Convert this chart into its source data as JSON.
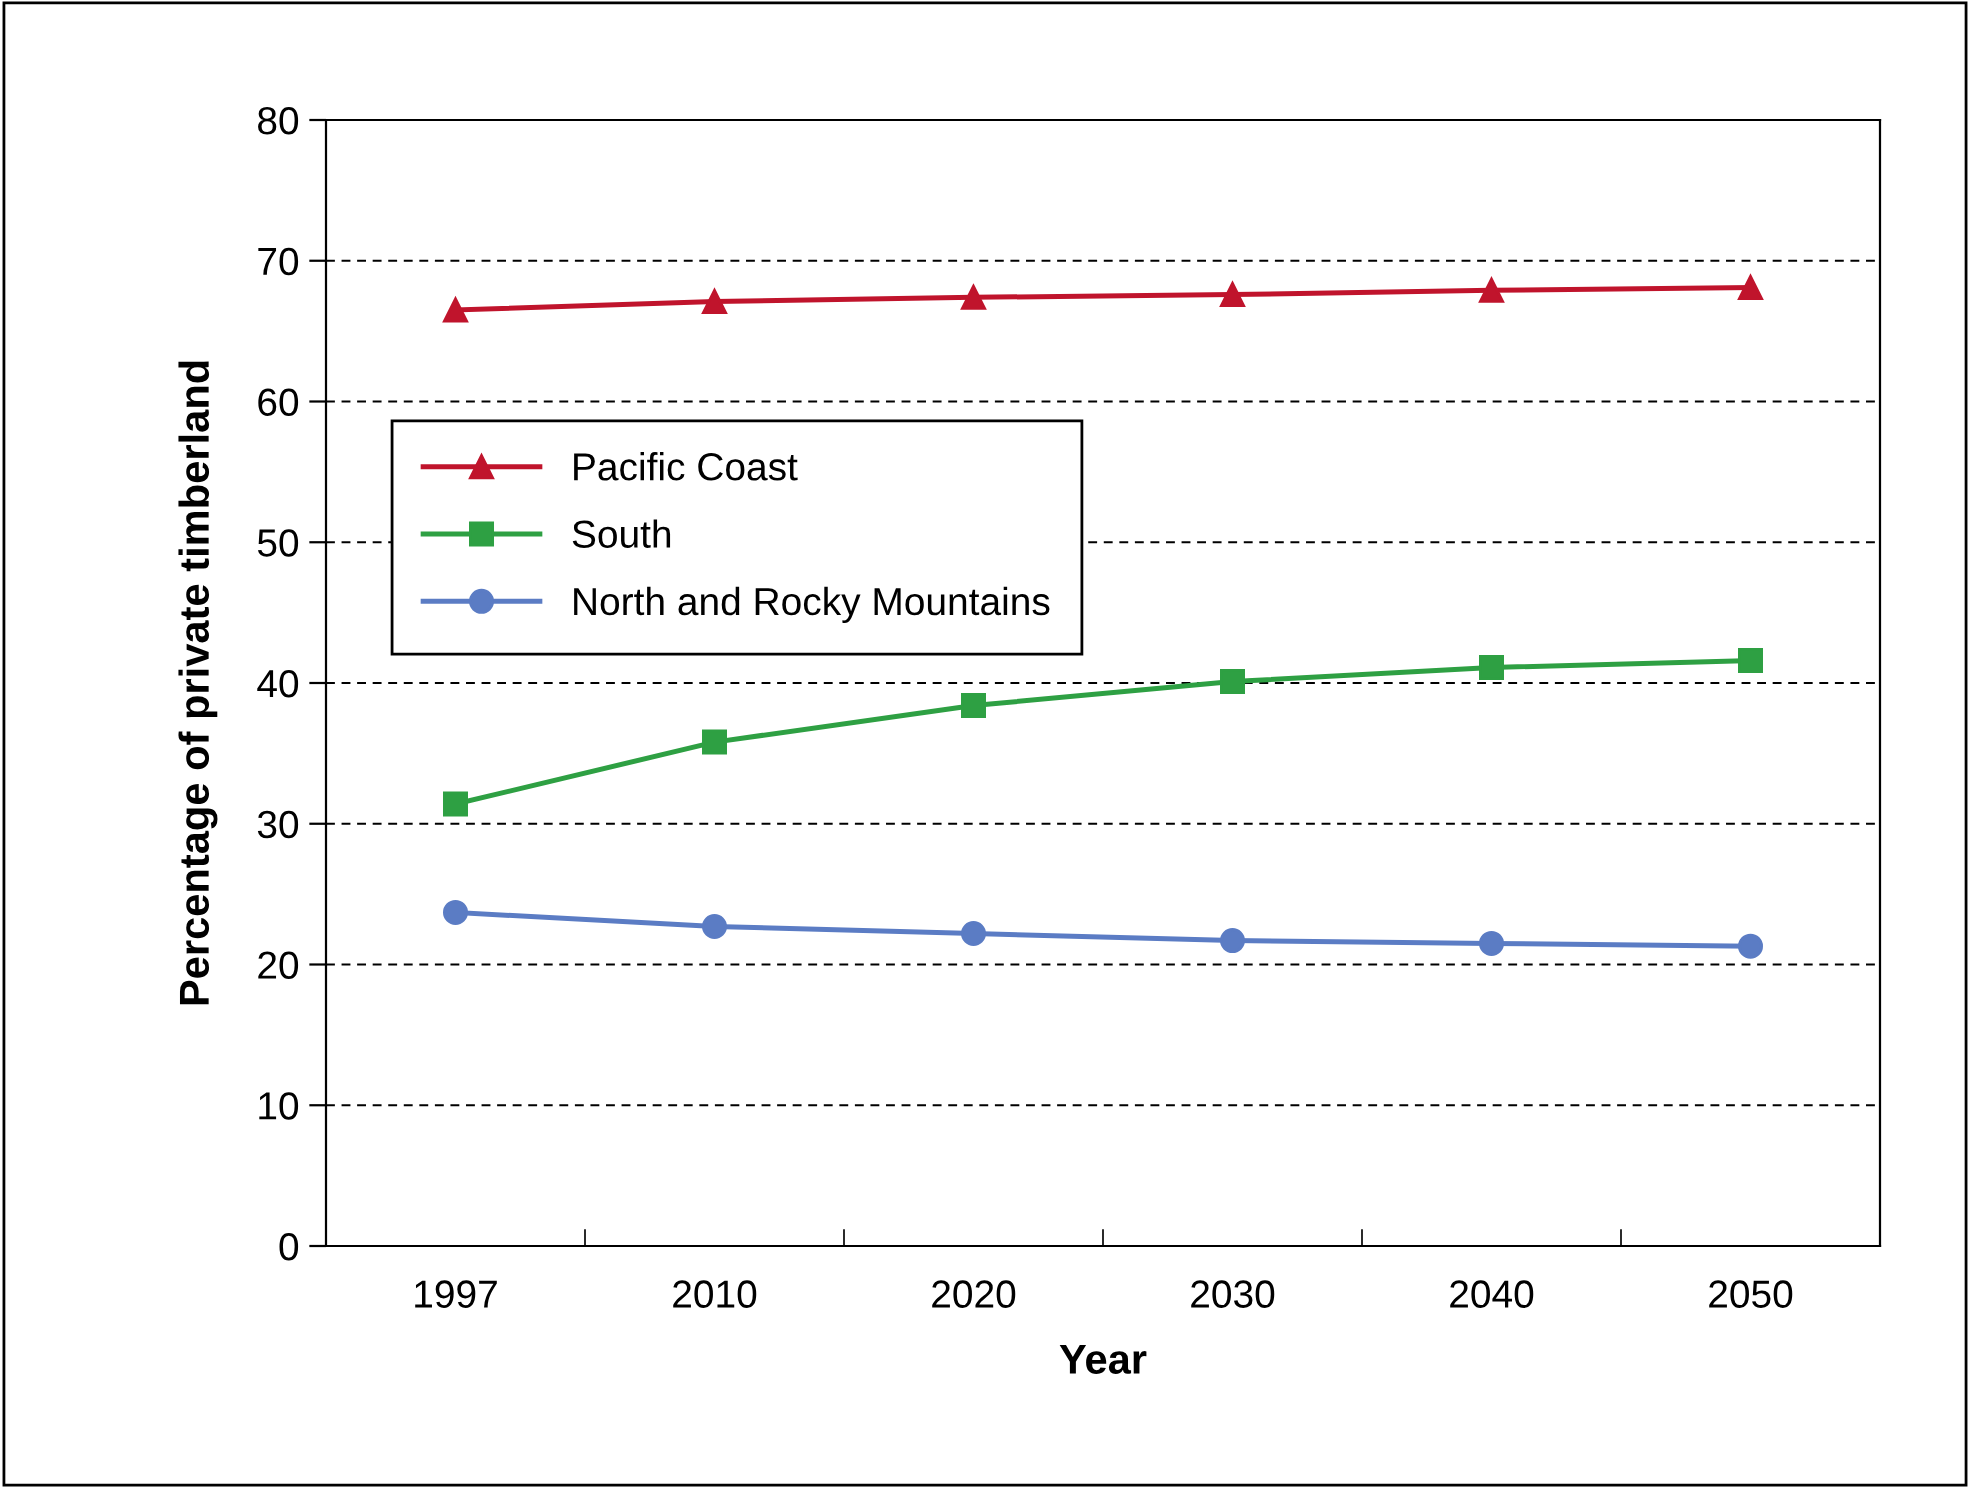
{
  "chart_data": {
    "type": "line",
    "xlabel": "Year",
    "ylabel": "Percentage of private timberland",
    "categories": [
      "1997",
      "2010",
      "2020",
      "2030",
      "2040",
      "2050"
    ],
    "series": [
      {
        "name": "Pacific Coast",
        "color": "#c0142c",
        "marker": "triangle",
        "values": [
          66.5,
          67.1,
          67.4,
          67.6,
          67.9,
          68.1
        ]
      },
      {
        "name": "South",
        "color": "#2ea043",
        "marker": "square",
        "values": [
          31.4,
          35.8,
          38.4,
          40.1,
          41.1,
          41.6
        ]
      },
      {
        "name": "North and Rocky Mountains",
        "color": "#5b7cc4",
        "marker": "circle",
        "values": [
          23.7,
          22.7,
          22.2,
          21.7,
          21.5,
          21.3
        ]
      }
    ],
    "ylim": [
      0,
      80
    ],
    "yticks": [
      0,
      10,
      20,
      30,
      40,
      50,
      60,
      70,
      80
    ],
    "grid": "y",
    "legend": "top left",
    "line_style": "solid"
  }
}
